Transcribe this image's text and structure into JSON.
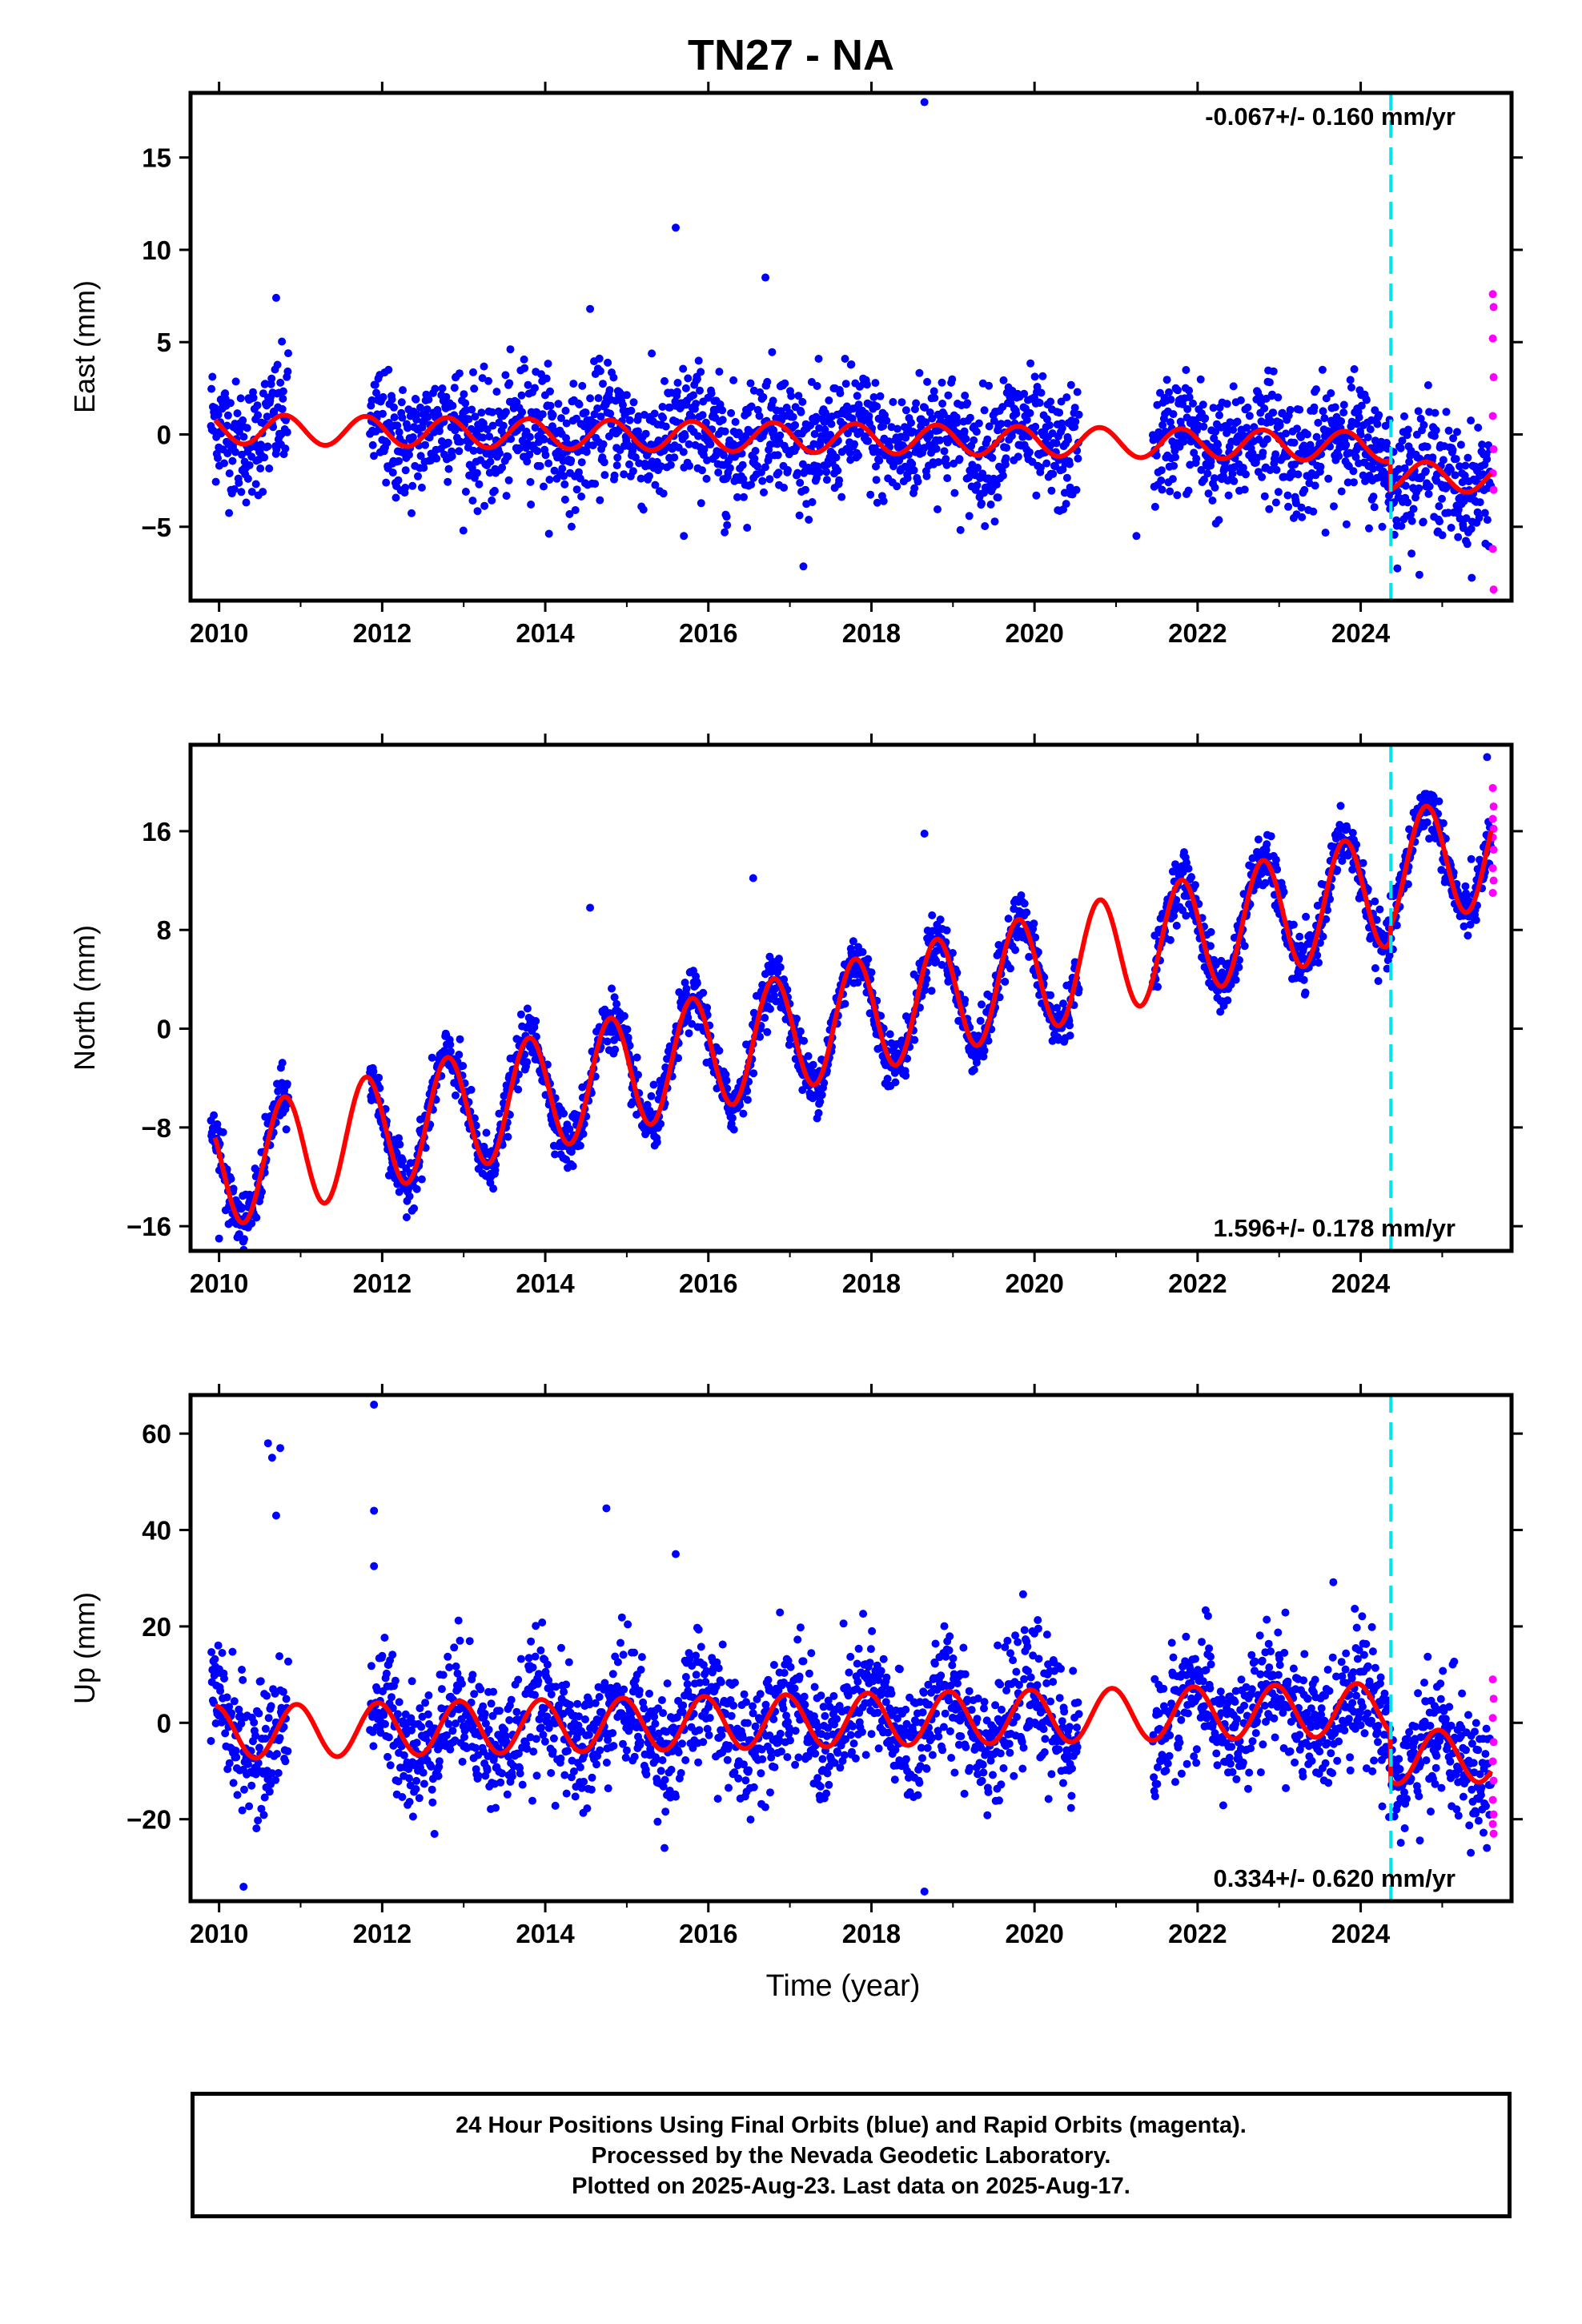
{
  "title": "TN27 - NA",
  "x_axis_label": "Time (year)",
  "colors": {
    "final_orbits": "#0000ff",
    "rapid_orbits": "#ff00ff",
    "model_fit": "#ff0000",
    "equipment_change": "#00e5ee"
  },
  "caption": {
    "line1": "24 Hour Positions Using Final Orbits (blue) and Rapid Orbits (magenta).",
    "line2": "Processed by the Nevada Geodetic Laboratory.",
    "line3": "Plotted on 2025-Aug-23. Last data on 2025-Aug-17."
  },
  "chart_data": [
    {
      "type": "scatter",
      "id": "east",
      "ylabel": "East (mm)",
      "rate_label": "-0.067+/- 0.160 mm/yr",
      "rate_position": "top-right",
      "xlim": [
        2009.65,
        2025.85
      ],
      "ylim": [
        -9,
        18.5
      ],
      "x_ticks": [
        2010,
        2012,
        2014,
        2016,
        2018,
        2020,
        2022,
        2024
      ],
      "y_ticks": [
        -5,
        0,
        5,
        10,
        15
      ],
      "grid": false,
      "equipment_change_year": 2024.37,
      "trend": {
        "offset": 0.3,
        "rate": -0.067,
        "annual_amp": 0.8,
        "annual_phase": 0.55,
        "step_year": 2024.37,
        "step": -1.6
      },
      "data_spans": [
        [
          2009.9,
          2010.85
        ],
        [
          2011.85,
          2020.55
        ],
        [
          2021.45,
          2025.6
        ]
      ],
      "scatter_sigma": 1.6,
      "outliers": [
        {
          "x": 2018.65,
          "y": 18.0
        },
        {
          "x": 2015.6,
          "y": 11.2
        },
        {
          "x": 2016.7,
          "y": 8.5
        },
        {
          "x": 2010.7,
          "y": 7.4
        },
        {
          "x": 2014.55,
          "y": 6.8
        },
        {
          "x": 2021.25,
          "y": -5.5
        },
        {
          "x": 2015.7,
          "y": -5.5
        },
        {
          "x": 2016.2,
          "y": -5.3
        }
      ],
      "rapid_points": [
        7.6,
        6.9,
        5.2,
        3.1,
        1.0,
        -0.8,
        -2.1,
        -3.0,
        -6.2,
        -8.4
      ]
    },
    {
      "type": "scatter",
      "id": "north",
      "ylabel": "North (mm)",
      "rate_label": "1.596+/- 0.178 mm/yr",
      "rate_position": "bottom-right",
      "xlim": [
        2009.65,
        2025.85
      ],
      "ylim": [
        -18,
        23
      ],
      "x_ticks": [
        2010,
        2012,
        2014,
        2016,
        2018,
        2020,
        2022,
        2024
      ],
      "y_ticks": [
        -16,
        -8,
        0,
        8,
        16
      ],
      "grid": false,
      "equipment_change_year": 2024.37,
      "trend": {
        "offset": -11.5,
        "rate": 1.596,
        "annual_amp": 4.7,
        "annual_phase": 0.55,
        "step_year": 2024.37,
        "step": 1.2
      },
      "data_spans": [
        [
          2009.9,
          2010.85
        ],
        [
          2011.85,
          2020.55
        ],
        [
          2021.45,
          2025.6
        ]
      ],
      "scatter_sigma": 1.1,
      "outliers": [
        {
          "x": 2018.65,
          "y": 15.8
        },
        {
          "x": 2016.55,
          "y": 12.2
        },
        {
          "x": 2014.55,
          "y": 9.8
        },
        {
          "x": 2025.55,
          "y": 22.0
        },
        {
          "x": 2010.0,
          "y": -17.0
        }
      ],
      "rapid_points": [
        19.5,
        18.0,
        17.0,
        16.2,
        15.5,
        14.5,
        13.0,
        12.0,
        11.0
      ]
    },
    {
      "type": "scatter",
      "id": "up",
      "ylabel": "Up (mm)",
      "rate_label": "0.334+/- 0.620 mm/yr",
      "rate_position": "bottom-right",
      "xlim": [
        2009.65,
        2025.85
      ],
      "ylim": [
        -37,
        68
      ],
      "x_ticks": [
        2010,
        2012,
        2014,
        2016,
        2018,
        2020,
        2022,
        2024
      ],
      "y_ticks": [
        -20,
        0,
        20,
        40,
        60
      ],
      "grid": false,
      "equipment_change_year": 2024.37,
      "trend": {
        "offset": -2.0,
        "rate": 0.334,
        "annual_amp": 5.5,
        "annual_phase": 0.7,
        "step_year": 2024.37,
        "step": -10.0
      },
      "data_spans": [
        [
          2009.9,
          2010.85
        ],
        [
          2011.85,
          2020.55
        ],
        [
          2021.45,
          2025.6
        ]
      ],
      "scatter_sigma": 6.5,
      "outliers": [
        {
          "x": 2011.9,
          "y": 66.0
        },
        {
          "x": 2010.6,
          "y": 58.0
        },
        {
          "x": 2010.75,
          "y": 57.0
        },
        {
          "x": 2010.65,
          "y": 55.0
        },
        {
          "x": 2010.7,
          "y": 43.0
        },
        {
          "x": 2011.9,
          "y": 44.0
        },
        {
          "x": 2014.75,
          "y": 44.5
        },
        {
          "x": 2011.9,
          "y": 32.5
        },
        {
          "x": 2015.6,
          "y": 35.0
        },
        {
          "x": 2010.3,
          "y": -34.0
        },
        {
          "x": 2018.65,
          "y": -35.0
        }
      ],
      "rapid_points": [
        9.0,
        5.0,
        1.0,
        -4.0,
        -8.0,
        -12.0,
        -16.0,
        -19.0,
        -21.0,
        -23.0
      ]
    }
  ]
}
